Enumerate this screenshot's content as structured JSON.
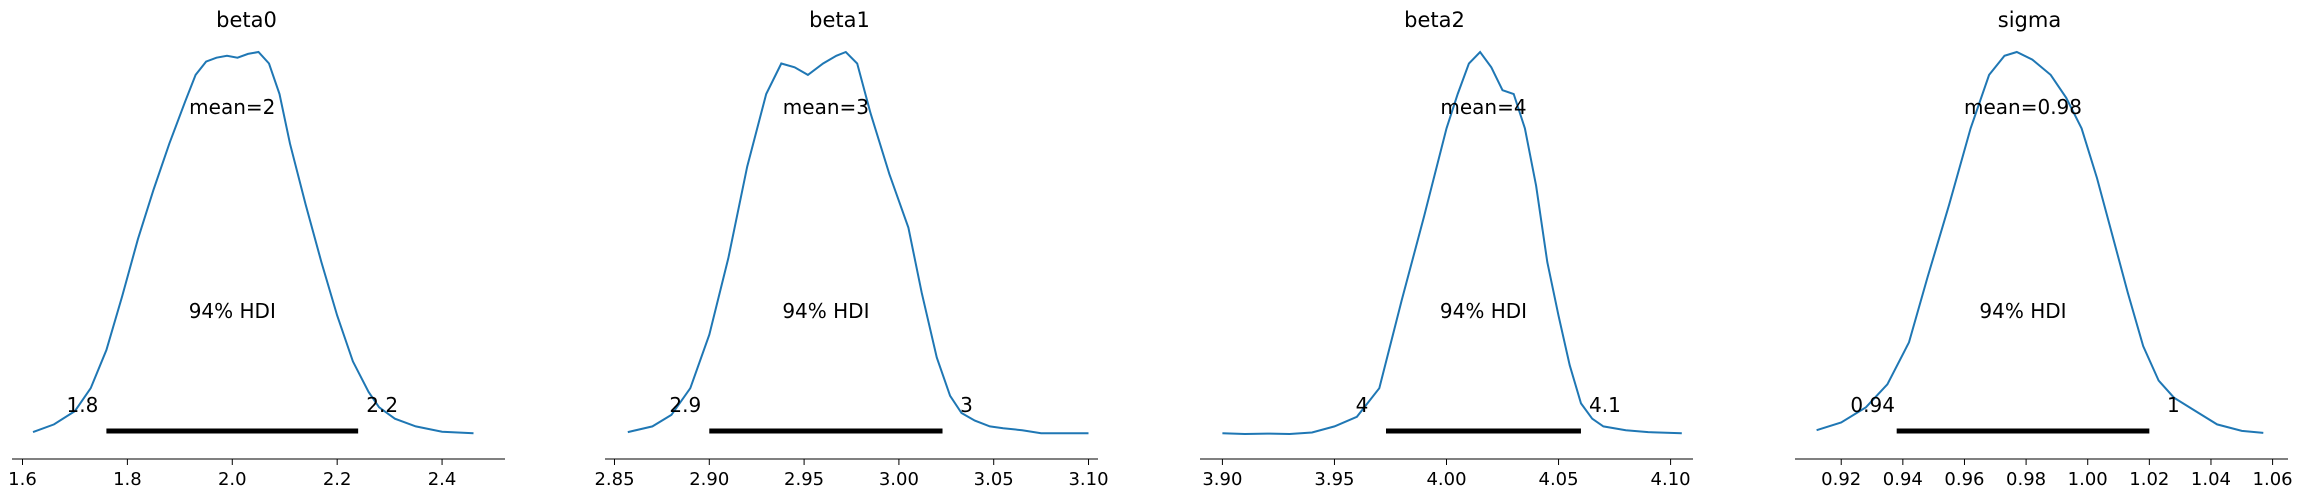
{
  "chart_data": [
    {
      "type": "line",
      "title": "beta0",
      "mean_label": "mean=2",
      "hdi_label": "94% HDI",
      "hdi": {
        "low": 1.76,
        "high": 2.24,
        "low_label": "1.8",
        "high_label": "2.2"
      },
      "xlim": [
        1.58,
        2.52
      ],
      "xticks": [
        1.6,
        1.8,
        2.0,
        2.2,
        2.4
      ],
      "xtick_labels": [
        "1.6",
        "1.8",
        "2.0",
        "2.2",
        "2.4"
      ],
      "color": "#1f77b4",
      "x": [
        1.62,
        1.66,
        1.7,
        1.73,
        1.76,
        1.79,
        1.82,
        1.85,
        1.88,
        1.91,
        1.93,
        1.95,
        1.97,
        1.99,
        2.01,
        2.03,
        2.05,
        2.07,
        2.09,
        2.11,
        2.14,
        2.17,
        2.2,
        2.23,
        2.26,
        2.28,
        2.31,
        2.35,
        2.4,
        2.46
      ],
      "y": [
        0.005,
        0.025,
        0.06,
        0.12,
        0.22,
        0.36,
        0.51,
        0.64,
        0.76,
        0.87,
        0.94,
        0.975,
        0.985,
        0.99,
        0.985,
        0.995,
        1.0,
        0.97,
        0.89,
        0.76,
        0.6,
        0.45,
        0.31,
        0.19,
        0.11,
        0.07,
        0.04,
        0.02,
        0.006,
        0.002
      ]
    },
    {
      "type": "line",
      "title": "beta1",
      "mean_label": "mean=3",
      "hdi_label": "94% HDI",
      "hdi": {
        "low": 2.9,
        "high": 3.023,
        "low_label": "2.9",
        "high_label": "3"
      },
      "xlim": [
        2.845,
        3.105
      ],
      "xticks": [
        2.85,
        2.9,
        2.95,
        3.0,
        3.05,
        3.1
      ],
      "xtick_labels": [
        "2.85",
        "2.90",
        "2.95",
        "3.00",
        "3.05",
        "3.10"
      ],
      "color": "#1f77b4",
      "x": [
        2.857,
        2.87,
        2.88,
        2.89,
        2.9,
        2.91,
        2.92,
        2.93,
        2.938,
        2.945,
        2.952,
        2.96,
        2.967,
        2.972,
        2.978,
        2.985,
        2.995,
        3.005,
        3.012,
        3.02,
        3.027,
        3.033,
        3.04,
        3.048,
        3.055,
        3.065,
        3.075,
        3.085,
        3.1
      ],
      "y": [
        0.005,
        0.02,
        0.05,
        0.12,
        0.26,
        0.46,
        0.7,
        0.89,
        0.97,
        0.96,
        0.94,
        0.97,
        0.99,
        1.0,
        0.97,
        0.84,
        0.68,
        0.54,
        0.37,
        0.2,
        0.1,
        0.055,
        0.035,
        0.02,
        0.015,
        0.01,
        0.002,
        0.002,
        0.002
      ]
    },
    {
      "type": "line",
      "title": "beta2",
      "mean_label": "mean=4",
      "hdi_label": "94% HDI",
      "hdi": {
        "low": 3.973,
        "high": 4.06,
        "low_label": "4",
        "high_label": "4.1"
      },
      "xlim": [
        3.89,
        4.11
      ],
      "xticks": [
        3.9,
        3.95,
        4.0,
        4.05,
        4.1
      ],
      "xtick_labels": [
        "3.90",
        "3.95",
        "4.00",
        "4.05",
        "4.10"
      ],
      "color": "#1f77b4",
      "x": [
        3.9,
        3.91,
        3.92,
        3.93,
        3.94,
        3.95,
        3.96,
        3.97,
        3.98,
        3.99,
        4.0,
        4.005,
        4.01,
        4.015,
        4.02,
        4.025,
        4.03,
        4.035,
        4.04,
        4.045,
        4.05,
        4.055,
        4.06,
        4.065,
        4.07,
        4.08,
        4.09,
        4.105
      ],
      "y": [
        0.002,
        0.0,
        0.001,
        0.0,
        0.004,
        0.02,
        0.045,
        0.12,
        0.35,
        0.57,
        0.8,
        0.89,
        0.97,
        1.0,
        0.96,
        0.9,
        0.89,
        0.8,
        0.65,
        0.45,
        0.31,
        0.18,
        0.08,
        0.04,
        0.02,
        0.01,
        0.005,
        0.002
      ]
    },
    {
      "type": "line",
      "title": "sigma",
      "mean_label": "mean=0.98",
      "hdi_label": "94% HDI",
      "hdi": {
        "low": 0.938,
        "high": 1.02,
        "low_label": "0.94",
        "high_label": "1"
      },
      "xlim": [
        0.905,
        1.065
      ],
      "xticks": [
        0.92,
        0.94,
        0.96,
        0.98,
        1.0,
        1.02,
        1.04,
        1.06
      ],
      "xtick_labels": [
        "0.92",
        "0.94",
        "0.96",
        "0.98",
        "1.00",
        "1.02",
        "1.04",
        "1.06"
      ],
      "color": "#1f77b4",
      "x": [
        0.912,
        0.92,
        0.928,
        0.935,
        0.942,
        0.948,
        0.955,
        0.962,
        0.968,
        0.973,
        0.977,
        0.982,
        0.988,
        0.993,
        0.998,
        1.003,
        1.008,
        1.013,
        1.018,
        1.023,
        1.028,
        1.035,
        1.042,
        1.05,
        1.057
      ],
      "y": [
        0.01,
        0.03,
        0.07,
        0.13,
        0.24,
        0.41,
        0.6,
        0.8,
        0.94,
        0.99,
        1.0,
        0.98,
        0.94,
        0.88,
        0.8,
        0.67,
        0.52,
        0.37,
        0.23,
        0.14,
        0.095,
        0.06,
        0.025,
        0.008,
        0.003
      ]
    }
  ]
}
